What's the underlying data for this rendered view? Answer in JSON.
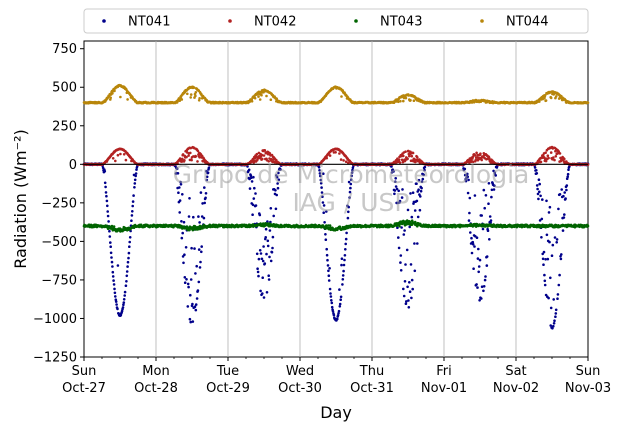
{
  "chart_data": {
    "type": "scatter",
    "title": "",
    "xlabel": "Day",
    "ylabel": "Radiation (Wm⁻²)",
    "ylim": [
      -1250,
      800
    ],
    "yticks": [
      -1250,
      -1000,
      -750,
      -500,
      -250,
      0,
      250,
      500,
      750
    ],
    "x_categories": [
      "Sun\nOct-27",
      "Mon\nOct-28",
      "Tue\nOct-29",
      "Wed\nOct-30",
      "Thu\nOct-31",
      "Fri\nNov-01",
      "Sat\nNov-02",
      "Sun\nNov-03"
    ],
    "x_range_days": [
      0,
      7
    ],
    "grid": "vertical",
    "legend_position": "top",
    "watermark": [
      "Grupo de Micrometeorologia",
      "IAG / USP"
    ],
    "series": [
      {
        "name": "NT041",
        "color": "#00008b",
        "baseline": 0,
        "night_noise": 5,
        "day_peaks": [
          -980,
          -1030,
          -880,
          -1010,
          -930,
          -880,
          -1060
        ],
        "day_cloudiness": [
          0.1,
          0.7,
          0.8,
          0.1,
          0.8,
          0.8,
          0.6
        ],
        "x": [
          0.1,
          0.3,
          0.45,
          0.5,
          0.55,
          0.7,
          0.9,
          1.1,
          1.3,
          1.5,
          1.7,
          1.9,
          2.1,
          2.3,
          2.5,
          2.7,
          2.9,
          3.1,
          3.3,
          3.45,
          3.5,
          3.55,
          3.7,
          3.9,
          4.1,
          4.3,
          4.5,
          4.7,
          4.9,
          5.1,
          5.3,
          5.5,
          5.7,
          5.9,
          6.1,
          6.3,
          6.5,
          6.7,
          6.9
        ],
        "y": [
          0,
          -250,
          -900,
          -980,
          -950,
          -250,
          0,
          0,
          -200,
          -1030,
          -800,
          0,
          0,
          -500,
          -880,
          -400,
          0,
          0,
          -400,
          -950,
          -1010,
          -980,
          -300,
          0,
          0,
          -200,
          -930,
          -500,
          0,
          0,
          -300,
          -880,
          -400,
          0,
          0,
          -300,
          -1060,
          -700,
          0
        ]
      },
      {
        "name": "NT042",
        "color": "#b22222",
        "baseline": 0,
        "night_noise": 2,
        "day_peaks": [
          100,
          110,
          90,
          100,
          85,
          80,
          110
        ],
        "day_cloudiness": [
          0.1,
          0.7,
          0.8,
          0.1,
          0.8,
          0.8,
          0.6
        ],
        "x": [
          0.1,
          0.3,
          0.5,
          0.7,
          0.9,
          1.1,
          1.3,
          1.5,
          1.7,
          1.9,
          2.1,
          2.3,
          2.5,
          2.7,
          2.9,
          3.1,
          3.3,
          3.5,
          3.7,
          3.9,
          4.1,
          4.3,
          4.5,
          4.7,
          4.9,
          5.1,
          5.3,
          5.5,
          5.7,
          5.9,
          6.1,
          6.3,
          6.5,
          6.7,
          6.9
        ],
        "y": [
          0,
          30,
          100,
          30,
          0,
          0,
          20,
          110,
          60,
          0,
          0,
          20,
          90,
          40,
          0,
          0,
          30,
          100,
          30,
          0,
          0,
          20,
          85,
          30,
          0,
          0,
          20,
          80,
          30,
          0,
          0,
          30,
          110,
          50,
          0
        ]
      },
      {
        "name": "NT043",
        "color": "#006400",
        "baseline": -400,
        "night_noise": 8,
        "day_peaks": [
          -30,
          -20,
          10,
          -20,
          30,
          5,
          0
        ],
        "day_cloudiness": [
          0.3,
          0.5,
          0.5,
          0.3,
          0.6,
          0.5,
          0.6
        ],
        "x": [
          0.0,
          0.4,
          0.6,
          0.9,
          1.2,
          1.5,
          1.8,
          2.1,
          2.5,
          2.9,
          3.2,
          3.5,
          3.8,
          4.1,
          4.5,
          4.9,
          5.2,
          5.5,
          5.8,
          6.1,
          6.5,
          7.0
        ],
        "y": [
          -370,
          -400,
          -430,
          -380,
          -390,
          -420,
          -380,
          -400,
          -390,
          -370,
          -400,
          -420,
          -375,
          -410,
          -360,
          -400,
          -410,
          -395,
          -400,
          -420,
          -420,
          -370
        ]
      },
      {
        "name": "NT044",
        "color": "#b8860b",
        "baseline": 400,
        "night_noise": 4,
        "day_peaks": [
          110,
          100,
          80,
          100,
          50,
          15,
          70
        ],
        "day_cloudiness": [
          0.1,
          0.3,
          0.4,
          0.1,
          0.4,
          0.4,
          0.3
        ],
        "x": [
          0.0,
          0.2,
          0.5,
          0.8,
          1.0,
          1.2,
          1.5,
          1.8,
          2.0,
          2.3,
          2.6,
          2.9,
          3.2,
          3.5,
          3.8,
          4.0,
          4.3,
          4.6,
          4.9,
          5.0,
          5.5,
          6.0,
          6.4,
          6.55,
          6.8,
          7.0
        ],
        "y": [
          390,
          410,
          510,
          410,
          410,
          440,
          500,
          410,
          410,
          400,
          480,
          430,
          400,
          500,
          420,
          410,
          450,
          430,
          410,
          400,
          420,
          420,
          410,
          470,
          430,
          400
        ]
      }
    ]
  }
}
